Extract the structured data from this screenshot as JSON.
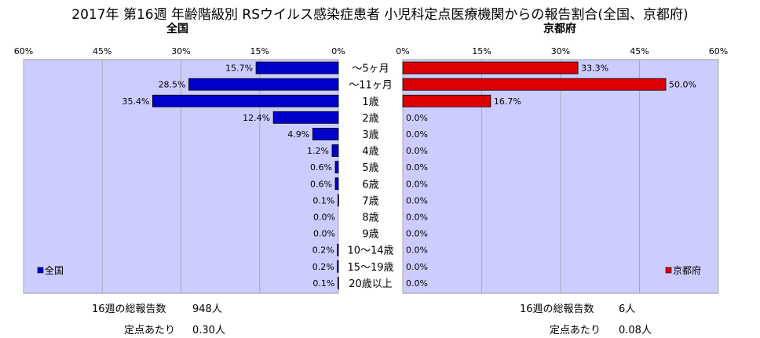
{
  "title": "2017年 第16週 年齢階級別 RSウイルス感染症患者 小児科定点医療機関からの報告割合(全国、京都府)",
  "chart_data": [
    {
      "type": "bar",
      "orientation": "horizontal",
      "direction": "right-to-left",
      "title": "全国",
      "categories": [
        "～5ヶ月",
        "～11ヶ月",
        "1歳",
        "2歳",
        "3歳",
        "4歳",
        "5歳",
        "6歳",
        "7歳",
        "8歳",
        "9歳",
        "10～14歳",
        "15～19歳",
        "20歳以上"
      ],
      "series": [
        {
          "name": "全国",
          "values": [
            15.7,
            28.5,
            35.4,
            12.4,
            4.9,
            1.2,
            0.6,
            0.6,
            0.1,
            0.0,
            0.0,
            0.2,
            0.2,
            0.1
          ],
          "labels": [
            "15.7%",
            "28.5%",
            "35.4%",
            "12.4%",
            "4.9%",
            "1.2%",
            "0.6%",
            "0.6%",
            "0.1%",
            "0.0%",
            "0.0%",
            "0.2%",
            "0.2%",
            "0.1%"
          ],
          "color": "#0000cc"
        }
      ],
      "xlim": [
        0,
        60
      ],
      "ticks": [
        "60%",
        "45%",
        "30%",
        "15%",
        "0%"
      ],
      "grid": true,
      "legend_position": "bottom-left",
      "background": "#ccccff"
    },
    {
      "type": "bar",
      "orientation": "horizontal",
      "direction": "left-to-right",
      "title": "京都府",
      "categories": [
        "～5ヶ月",
        "～11ヶ月",
        "1歳",
        "2歳",
        "3歳",
        "4歳",
        "5歳",
        "6歳",
        "7歳",
        "8歳",
        "9歳",
        "10～14歳",
        "15～19歳",
        "20歳以上"
      ],
      "series": [
        {
          "name": "京都府",
          "values": [
            33.3,
            50.0,
            16.7,
            0.0,
            0.0,
            0.0,
            0.0,
            0.0,
            0.0,
            0.0,
            0.0,
            0.0,
            0.0,
            0.0
          ],
          "labels": [
            "33.3%",
            "50.0%",
            "16.7%",
            "0.0%",
            "0.0%",
            "0.0%",
            "0.0%",
            "0.0%",
            "0.0%",
            "0.0%",
            "0.0%",
            "0.0%",
            "0.0%",
            "0.0%"
          ],
          "color": "#dd0000"
        }
      ],
      "xlim": [
        0,
        60
      ],
      "ticks": [
        "0%",
        "15%",
        "30%",
        "45%",
        "60%"
      ],
      "grid": true,
      "legend_position": "bottom-right",
      "background": "#ccccff"
    }
  ],
  "summary": {
    "national": {
      "total_label": "16週の総報告数",
      "total_value": "948人",
      "per_label": "定点あたり",
      "per_value": "0.30人"
    },
    "kyoto": {
      "total_label": "16週の総報告数",
      "total_value": "6人",
      "per_label": "定点あたり",
      "per_value": "0.08人"
    }
  }
}
